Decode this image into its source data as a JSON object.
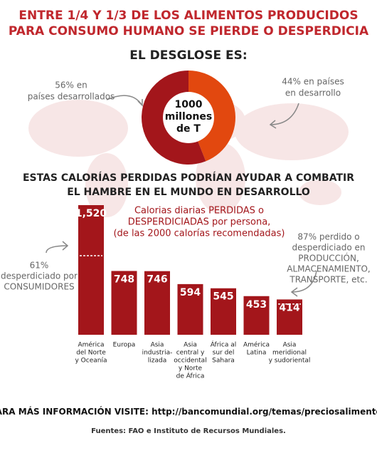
{
  "header": {
    "title": [
      "ENTRE 1/4 Y 1/3 DE LOS ALIMENTOS PRODUCIDOS",
      "PARA CONSUMO HUMANO SE PIERDE O DESPERDICIA"
    ]
  },
  "chart_data": [
    {
      "type": "pie",
      "title": "EL DESGLOSE ES:",
      "center_label": [
        "1000",
        "millones",
        "de T"
      ],
      "categories": [
        [
          "56% en",
          "países desarrollados"
        ],
        [
          "44% en países",
          "en desarrollo"
        ]
      ],
      "values": [
        56,
        44
      ],
      "colors": [
        "#a3161b",
        "#e2480f"
      ]
    },
    {
      "type": "bar",
      "title": [
        "ESTAS CALORÍAS PERDIDAS PODRÍAN AYUDAR A COMBATIR",
        "EL HAMBRE EN EL MUNDO EN DESARROLLO"
      ],
      "subtitle": [
        "Calorias diarias PERDIDAS o",
        "DESPERDICIADAS por persona,",
        "(de las 2000 calorías recomendadas)"
      ],
      "categories": [
        [
          "América",
          "del Norte",
          "y Oceanía"
        ],
        [
          "Europa"
        ],
        [
          "Asia",
          "industria-",
          "lizada"
        ],
        [
          "Asia",
          "central y",
          "occidental",
          "y Norte",
          "de África"
        ],
        [
          "África al",
          "sur del",
          "Sahara"
        ],
        [
          "América",
          "Latina"
        ],
        [
          "Asia",
          "meridional",
          "y sudoriental"
        ]
      ],
      "values": [
        1520,
        748,
        746,
        594,
        545,
        453,
        414
      ],
      "value_labels": [
        "1,520",
        "748",
        "746",
        "594",
        "545",
        "453",
        "414"
      ],
      "color": "#a3161b",
      "annotations": [
        {
          "text": [
            "61%",
            "desperdiciado por",
            "CONSUMIDORES"
          ],
          "value": 61,
          "bar": 0
        },
        {
          "text": [
            "87% perdido o",
            "desperdiciado en",
            "PRODUCCIÓN,",
            "ALMACENAMIENTO,",
            "TRANSPORTE, etc."
          ],
          "value": 87,
          "bar": 6
        }
      ]
    }
  ],
  "footer": {
    "info_label": "PARA MÁS INFORMACIÓN VISITE:",
    "url": "http://bancomundial.org/temas/preciosalimentos",
    "sources": "Fuentes: FAO e Instituto de Recursos Mundiales."
  }
}
